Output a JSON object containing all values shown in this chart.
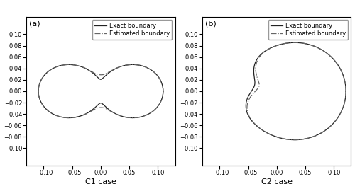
{
  "subplot_labels": [
    "(a)",
    "(b)"
  ],
  "xlabels": [
    "C1 case",
    "C2 case"
  ],
  "xlim": [
    -0.13,
    0.13
  ],
  "ylim": [
    -0.13,
    0.13
  ],
  "xticks": [
    -0.1,
    -0.05,
    0,
    0.05,
    0.1
  ],
  "yticks": [
    -0.1,
    -0.08,
    -0.06,
    -0.04,
    -0.02,
    0,
    0.02,
    0.04,
    0.06,
    0.08,
    0.1
  ],
  "exact_color": "#222222",
  "estimated_color": "#666666",
  "legend_labels": [
    "Exact boundary",
    "Estimated boundary"
  ],
  "background_color": "#ffffff",
  "tick_labelsize": 6,
  "xlabel_fontsize": 8,
  "label_fontsize": 8,
  "legend_fontsize": 6
}
